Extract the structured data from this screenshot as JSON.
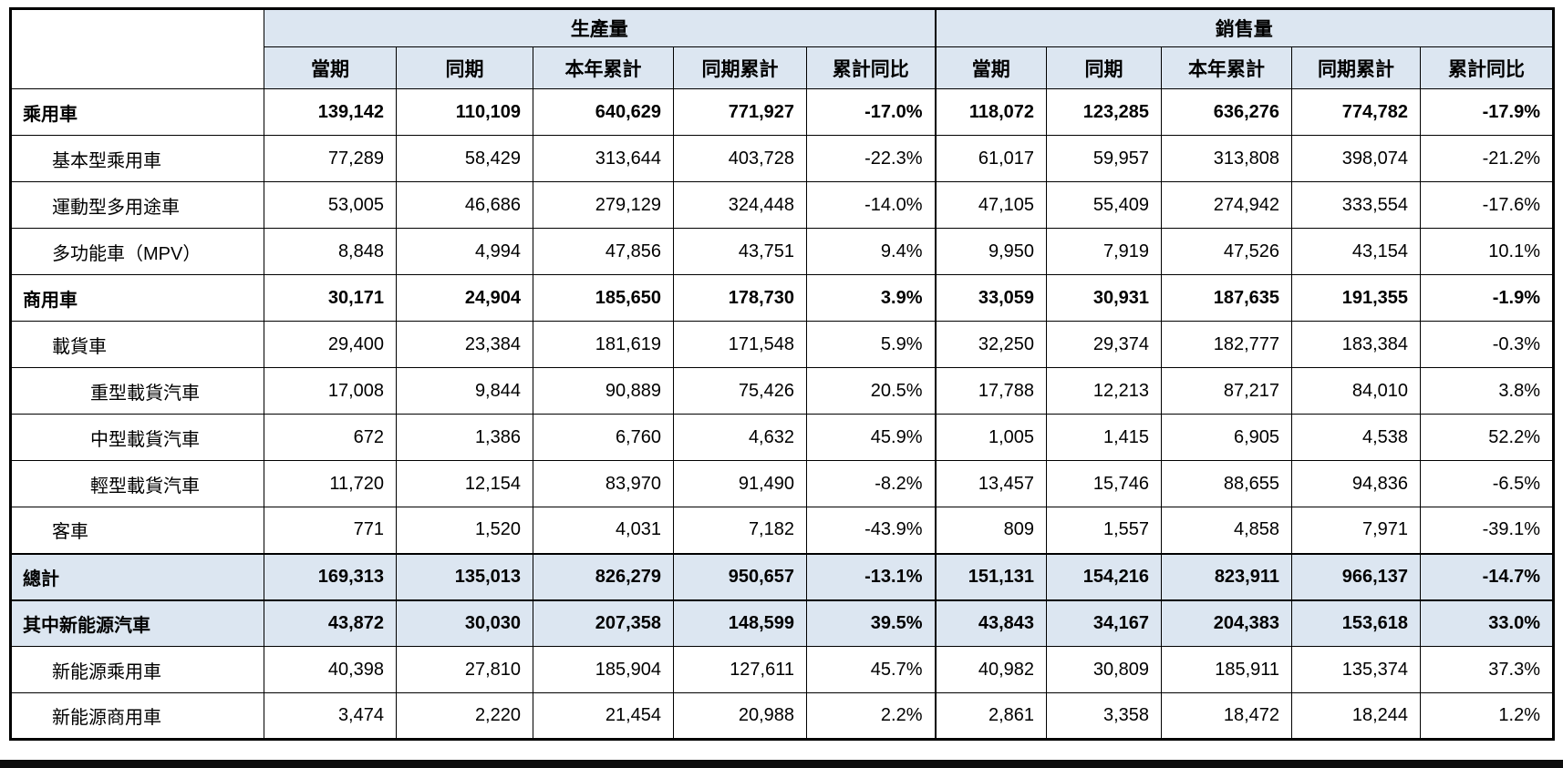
{
  "table": {
    "groups": [
      {
        "label": "生產量"
      },
      {
        "label": "銷售量"
      }
    ],
    "sub_headers": [
      "當期",
      "同期",
      "本年累計",
      "同期累計",
      "累計同比"
    ],
    "rows": [
      {
        "label": "乘用車",
        "indent": 0,
        "bold": true,
        "highlight": false,
        "production": [
          "139,142",
          "110,109",
          "640,629",
          "771,927",
          "-17.0%"
        ],
        "sales": [
          "118,072",
          "123,285",
          "636,276",
          "774,782",
          "-17.9%"
        ]
      },
      {
        "label": "基本型乘用車",
        "indent": 1,
        "bold": false,
        "highlight": false,
        "production": [
          "77,289",
          "58,429",
          "313,644",
          "403,728",
          "-22.3%"
        ],
        "sales": [
          "61,017",
          "59,957",
          "313,808",
          "398,074",
          "-21.2%"
        ]
      },
      {
        "label": "運動型多用途車",
        "indent": 1,
        "bold": false,
        "highlight": false,
        "production": [
          "53,005",
          "46,686",
          "279,129",
          "324,448",
          "-14.0%"
        ],
        "sales": [
          "47,105",
          "55,409",
          "274,942",
          "333,554",
          "-17.6%"
        ]
      },
      {
        "label": "多功能車（MPV）",
        "indent": 1,
        "bold": false,
        "highlight": false,
        "production": [
          "8,848",
          "4,994",
          "47,856",
          "43,751",
          "9.4%"
        ],
        "sales": [
          "9,950",
          "7,919",
          "47,526",
          "43,154",
          "10.1%"
        ]
      },
      {
        "label": "商用車",
        "indent": 0,
        "bold": true,
        "highlight": false,
        "production": [
          "30,171",
          "24,904",
          "185,650",
          "178,730",
          "3.9%"
        ],
        "sales": [
          "33,059",
          "30,931",
          "187,635",
          "191,355",
          "-1.9%"
        ]
      },
      {
        "label": "載貨車",
        "indent": 1,
        "bold": false,
        "highlight": false,
        "production": [
          "29,400",
          "23,384",
          "181,619",
          "171,548",
          "5.9%"
        ],
        "sales": [
          "32,250",
          "29,374",
          "182,777",
          "183,384",
          "-0.3%"
        ]
      },
      {
        "label": "重型載貨汽車",
        "indent": 2,
        "bold": false,
        "highlight": false,
        "production": [
          "17,008",
          "9,844",
          "90,889",
          "75,426",
          "20.5%"
        ],
        "sales": [
          "17,788",
          "12,213",
          "87,217",
          "84,010",
          "3.8%"
        ]
      },
      {
        "label": "中型載貨汽車",
        "indent": 2,
        "bold": false,
        "highlight": false,
        "production": [
          "672",
          "1,386",
          "6,760",
          "4,632",
          "45.9%"
        ],
        "sales": [
          "1,005",
          "1,415",
          "6,905",
          "4,538",
          "52.2%"
        ]
      },
      {
        "label": "輕型載貨汽車",
        "indent": 2,
        "bold": false,
        "highlight": false,
        "production": [
          "11,720",
          "12,154",
          "83,970",
          "91,490",
          "-8.2%"
        ],
        "sales": [
          "13,457",
          "15,746",
          "88,655",
          "94,836",
          "-6.5%"
        ]
      },
      {
        "label": "客車",
        "indent": 1,
        "bold": false,
        "highlight": false,
        "production": [
          "771",
          "1,520",
          "4,031",
          "7,182",
          "-43.9%"
        ],
        "sales": [
          "809",
          "1,557",
          "4,858",
          "7,971",
          "-39.1%"
        ]
      },
      {
        "label": "總計",
        "indent": 0,
        "bold": true,
        "highlight": true,
        "production": [
          "169,313",
          "135,013",
          "826,279",
          "950,657",
          "-13.1%"
        ],
        "sales": [
          "151,131",
          "154,216",
          "823,911",
          "966,137",
          "-14.7%"
        ]
      },
      {
        "label": "其中新能源汽車",
        "indent": 0,
        "bold": true,
        "highlight": true,
        "production": [
          "43,872",
          "30,030",
          "207,358",
          "148,599",
          "39.5%"
        ],
        "sales": [
          "43,843",
          "34,167",
          "204,383",
          "153,618",
          "33.0%"
        ]
      },
      {
        "label": "新能源乘用車",
        "indent": 1,
        "bold": false,
        "highlight": false,
        "production": [
          "40,398",
          "27,810",
          "185,904",
          "127,611",
          "45.7%"
        ],
        "sales": [
          "40,982",
          "30,809",
          "185,911",
          "135,374",
          "37.3%"
        ]
      },
      {
        "label": "新能源商用車",
        "indent": 1,
        "bold": false,
        "highlight": false,
        "production": [
          "3,474",
          "2,220",
          "21,454",
          "20,988",
          "2.2%"
        ],
        "sales": [
          "2,861",
          "3,358",
          "18,472",
          "18,244",
          "1.2%"
        ]
      }
    ]
  },
  "colors": {
    "header_bg": "#dce6f1",
    "highlight_row_bg": "#dce6f1",
    "border": "#000000",
    "bottom_bar": "#0d0d0d",
    "text": "#000000"
  }
}
